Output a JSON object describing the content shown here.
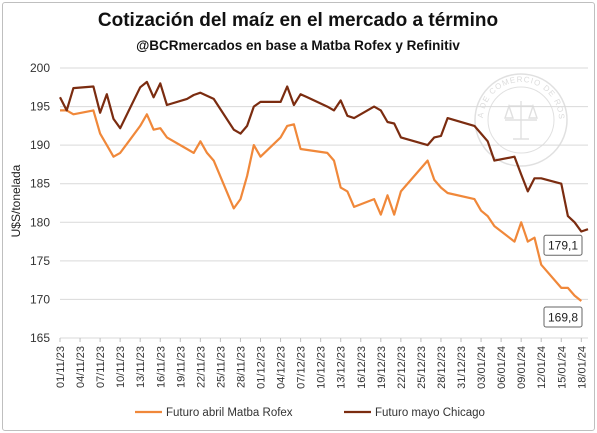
{
  "chart_data": {
    "type": "line",
    "title": "Cotización del maíz en el mercado a término",
    "subtitle": "@BCRmercados en base a Matba Rofex y Refinitiv",
    "ylabel": "U$S/tonelada",
    "ylim": [
      165,
      200
    ],
    "yticks": [
      165,
      170,
      175,
      180,
      185,
      190,
      195,
      200
    ],
    "grid": true,
    "legend_position": "bottom",
    "x_tick_labels": [
      "01/11/23",
      "04/11/23",
      "07/11/23",
      "10/11/23",
      "13/11/23",
      "16/11/23",
      "19/11/23",
      "22/11/23",
      "25/11/23",
      "28/11/23",
      "01/12/23",
      "04/12/23",
      "07/12/23",
      "10/12/23",
      "13/12/23",
      "16/12/23",
      "19/12/23",
      "22/12/23",
      "25/12/23",
      "28/12/23",
      "31/12/23",
      "03/01/24",
      "06/01/24",
      "09/01/24",
      "12/01/24",
      "15/01/24",
      "18/01/24"
    ],
    "x_start": "2023-11-01",
    "x_end": "2024-01-19",
    "series": [
      {
        "name": "Futuro abril Matba Rofex",
        "color": "#f0883a",
        "points": [
          [
            "2023-11-01",
            194.5
          ],
          [
            "2023-11-02",
            194.5
          ],
          [
            "2023-11-03",
            194.0
          ],
          [
            "2023-11-06",
            194.5
          ],
          [
            "2023-11-07",
            191.5
          ],
          [
            "2023-11-08",
            190.0
          ],
          [
            "2023-11-09",
            188.5
          ],
          [
            "2023-11-10",
            189.0
          ],
          [
            "2023-11-13",
            192.5
          ],
          [
            "2023-11-14",
            194.0
          ],
          [
            "2023-11-15",
            192.0
          ],
          [
            "2023-11-16",
            192.2
          ],
          [
            "2023-11-17",
            191.0
          ],
          [
            "2023-11-20",
            189.5
          ],
          [
            "2023-11-21",
            189.0
          ],
          [
            "2023-11-22",
            190.5
          ],
          [
            "2023-11-23",
            189.0
          ],
          [
            "2023-11-24",
            188.0
          ],
          [
            "2023-11-27",
            181.8
          ],
          [
            "2023-11-28",
            183.0
          ],
          [
            "2023-11-29",
            186.0
          ],
          [
            "2023-11-30",
            190.0
          ],
          [
            "2023-12-01",
            188.5
          ],
          [
            "2023-12-04",
            191.0
          ],
          [
            "2023-12-05",
            192.5
          ],
          [
            "2023-12-06",
            192.7
          ],
          [
            "2023-12-07",
            189.5
          ],
          [
            "2023-12-11",
            189.0
          ],
          [
            "2023-12-12",
            188.0
          ],
          [
            "2023-12-13",
            184.5
          ],
          [
            "2023-12-14",
            184.0
          ],
          [
            "2023-12-15",
            182.0
          ],
          [
            "2023-12-18",
            183.0
          ],
          [
            "2023-12-19",
            181.0
          ],
          [
            "2023-12-20",
            183.5
          ],
          [
            "2023-12-21",
            181.0
          ],
          [
            "2023-12-22",
            184.0
          ],
          [
            "2023-12-26",
            188.0
          ],
          [
            "2023-12-27",
            185.5
          ],
          [
            "2023-12-28",
            184.5
          ],
          [
            "2023-12-29",
            183.8
          ],
          [
            "2024-01-02",
            183.0
          ],
          [
            "2024-01-03",
            181.5
          ],
          [
            "2024-01-04",
            180.8
          ],
          [
            "2024-01-05",
            179.5
          ],
          [
            "2024-01-08",
            177.5
          ],
          [
            "2024-01-09",
            180.0
          ],
          [
            "2024-01-10",
            177.5
          ],
          [
            "2024-01-11",
            178.0
          ],
          [
            "2024-01-12",
            174.5
          ],
          [
            "2024-01-15",
            171.5
          ],
          [
            "2024-01-16",
            171.5
          ],
          [
            "2024-01-17",
            170.5
          ],
          [
            "2024-01-18",
            169.8
          ]
        ]
      },
      {
        "name": "Futuro mayo Chicago",
        "color": "#7b2c10",
        "points": [
          [
            "2023-11-01",
            196.2
          ],
          [
            "2023-11-02",
            194.5
          ],
          [
            "2023-11-03",
            197.4
          ],
          [
            "2023-11-06",
            197.6
          ],
          [
            "2023-11-07",
            194.2
          ],
          [
            "2023-11-08",
            196.6
          ],
          [
            "2023-11-09",
            193.4
          ],
          [
            "2023-11-10",
            192.2
          ],
          [
            "2023-11-13",
            197.5
          ],
          [
            "2023-11-14",
            198.2
          ],
          [
            "2023-11-15",
            196.2
          ],
          [
            "2023-11-16",
            198.0
          ],
          [
            "2023-11-17",
            195.2
          ],
          [
            "2023-11-20",
            196.0
          ],
          [
            "2023-11-21",
            196.5
          ],
          [
            "2023-11-22",
            196.8
          ],
          [
            "2023-11-24",
            196.0
          ],
          [
            "2023-11-27",
            192.0
          ],
          [
            "2023-11-28",
            191.5
          ],
          [
            "2023-11-29",
            192.5
          ],
          [
            "2023-11-30",
            195.0
          ],
          [
            "2023-12-01",
            195.6
          ],
          [
            "2023-12-04",
            195.6
          ],
          [
            "2023-12-05",
            197.6
          ],
          [
            "2023-12-06",
            195.2
          ],
          [
            "2023-12-07",
            196.6
          ],
          [
            "2023-12-08",
            196.2
          ],
          [
            "2023-12-11",
            195.0
          ],
          [
            "2023-12-12",
            194.5
          ],
          [
            "2023-12-13",
            195.8
          ],
          [
            "2023-12-14",
            193.8
          ],
          [
            "2023-12-15",
            193.5
          ],
          [
            "2023-12-18",
            195.0
          ],
          [
            "2023-12-19",
            194.5
          ],
          [
            "2023-12-20",
            193.0
          ],
          [
            "2023-12-21",
            192.8
          ],
          [
            "2023-12-22",
            191.0
          ],
          [
            "2023-12-26",
            190.0
          ],
          [
            "2023-12-27",
            191.0
          ],
          [
            "2023-12-28",
            191.2
          ],
          [
            "2023-12-29",
            193.5
          ],
          [
            "2024-01-02",
            192.5
          ],
          [
            "2024-01-03",
            191.5
          ],
          [
            "2024-01-04",
            190.5
          ],
          [
            "2024-01-05",
            188.0
          ],
          [
            "2024-01-08",
            188.5
          ],
          [
            "2024-01-09",
            186.2
          ],
          [
            "2024-01-10",
            184.0
          ],
          [
            "2024-01-11",
            185.7
          ],
          [
            "2024-01-12",
            185.7
          ],
          [
            "2024-01-15",
            185.0
          ],
          [
            "2024-01-16",
            180.8
          ],
          [
            "2024-01-17",
            180.0
          ],
          [
            "2024-01-18",
            178.8
          ],
          [
            "2024-01-19",
            179.1
          ]
        ]
      }
    ],
    "annotations": [
      {
        "text": "179,1",
        "series": "Futuro mayo Chicago"
      },
      {
        "text": "169,8",
        "series": "Futuro abril Matba Rofex"
      }
    ]
  },
  "watermark": {
    "text": "BOLSA DE COMERCIO DE ROSARIO",
    "color": "#c8c8c8"
  }
}
